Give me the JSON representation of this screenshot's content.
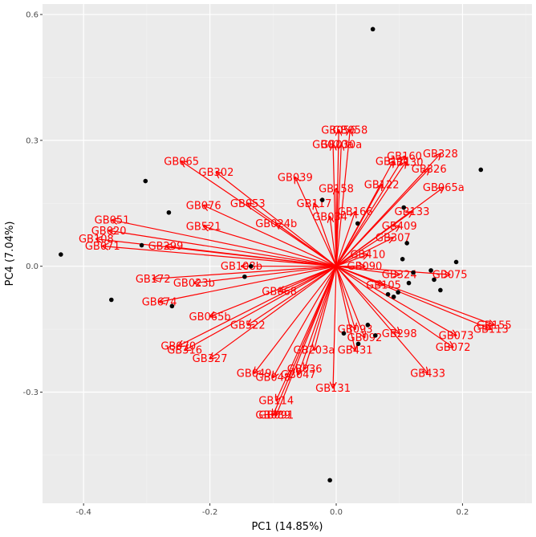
{
  "chart_data": {
    "type": "scatter",
    "title": "",
    "xlabel": "PC1 (14.85%)",
    "ylabel": "PC4 (7.04%)",
    "xlim": [
      -0.465,
      0.31
    ],
    "ylim": [
      -0.565,
      0.625
    ],
    "x_ticks": [
      -0.4,
      -0.2,
      0.0,
      0.2
    ],
    "x_tick_labels": [
      "-0.4",
      "-0.2",
      "0.0",
      "0.2"
    ],
    "y_ticks": [
      -0.3,
      0.0,
      0.3,
      0.6
    ],
    "y_tick_labels": [
      "-0.3",
      "0.0",
      "0.3",
      "0.6"
    ],
    "grid": true,
    "background": "#ebebeb",
    "arrow_color": "#ff0000",
    "point_color": "#000000",
    "origin": [
      0.0,
      0.0
    ],
    "points": [
      {
        "x": 0.058,
        "y": 0.565
      },
      {
        "x": 0.229,
        "y": 0.23
      },
      {
        "x": -0.302,
        "y": 0.203
      },
      {
        "x": -0.022,
        "y": 0.158
      },
      {
        "x": 0.107,
        "y": 0.14
      },
      {
        "x": -0.265,
        "y": 0.128
      },
      {
        "x": 0.034,
        "y": 0.102
      },
      {
        "x": 0.112,
        "y": 0.055
      },
      {
        "x": -0.308,
        "y": 0.05
      },
      {
        "x": -0.436,
        "y": 0.028
      },
      {
        "x": 0.105,
        "y": 0.017
      },
      {
        "x": 0.19,
        "y": 0.01
      },
      {
        "x": -0.135,
        "y": 0.0
      },
      {
        "x": 0.15,
        "y": -0.01
      },
      {
        "x": 0.122,
        "y": -0.015
      },
      {
        "x": 0.155,
        "y": -0.032
      },
      {
        "x": -0.145,
        "y": -0.025
      },
      {
        "x": 0.115,
        "y": -0.04
      },
      {
        "x": 0.165,
        "y": -0.057
      },
      {
        "x": 0.098,
        "y": -0.062
      },
      {
        "x": 0.082,
        "y": -0.067
      },
      {
        "x": 0.091,
        "y": -0.073
      },
      {
        "x": -0.356,
        "y": -0.08
      },
      {
        "x": -0.26,
        "y": -0.095
      },
      {
        "x": 0.05,
        "y": -0.14
      },
      {
        "x": 0.012,
        "y": -0.16
      },
      {
        "x": 0.062,
        "y": -0.165
      },
      {
        "x": 0.035,
        "y": -0.185
      },
      {
        "x": -0.01,
        "y": -0.51
      }
    ],
    "arrows": [
      {
        "label": "GB056",
        "x": 0.004,
        "y": 0.325
      },
      {
        "label": "GB058",
        "x": 0.022,
        "y": 0.325
      },
      {
        "label": "GB020a",
        "x": -0.005,
        "y": 0.29
      },
      {
        "label": "GB030a",
        "x": 0.008,
        "y": 0.29
      },
      {
        "label": "GB328",
        "x": 0.165,
        "y": 0.268
      },
      {
        "label": "GB160",
        "x": 0.108,
        "y": 0.262
      },
      {
        "label": "GB111",
        "x": 0.09,
        "y": 0.25
      },
      {
        "label": "GB130",
        "x": 0.11,
        "y": 0.248
      },
      {
        "label": "GB326",
        "x": 0.147,
        "y": 0.232
      },
      {
        "label": "GB065",
        "x": -0.245,
        "y": 0.25
      },
      {
        "label": "GB302",
        "x": -0.19,
        "y": 0.224
      },
      {
        "label": "GB039",
        "x": -0.065,
        "y": 0.212
      },
      {
        "label": "GB122",
        "x": 0.072,
        "y": 0.195
      },
      {
        "label": "GB158",
        "x": 0.0,
        "y": 0.185
      },
      {
        "label": "GB065a",
        "x": 0.17,
        "y": 0.188
      },
      {
        "label": "GB117",
        "x": -0.035,
        "y": 0.15
      },
      {
        "label": "GB076",
        "x": -0.21,
        "y": 0.145
      },
      {
        "label": "GB053",
        "x": -0.14,
        "y": 0.15
      },
      {
        "label": "GB166",
        "x": 0.03,
        "y": 0.13
      },
      {
        "label": "GB133",
        "x": 0.12,
        "y": 0.13
      },
      {
        "label": "GB034",
        "x": -0.01,
        "y": 0.118
      },
      {
        "label": "GB051",
        "x": -0.355,
        "y": 0.11
      },
      {
        "label": "GB521",
        "x": -0.21,
        "y": 0.095
      },
      {
        "label": "GB024b",
        "x": -0.095,
        "y": 0.102
      },
      {
        "label": "GB409",
        "x": 0.1,
        "y": 0.096
      },
      {
        "label": "GB020",
        "x": -0.36,
        "y": 0.085
      },
      {
        "label": "GB307",
        "x": 0.09,
        "y": 0.068
      },
      {
        "label": "GB108",
        "x": -0.38,
        "y": 0.065
      },
      {
        "label": "GB071",
        "x": -0.37,
        "y": 0.048
      },
      {
        "label": "GB299",
        "x": -0.27,
        "y": 0.048
      },
      {
        "label": "GB410",
        "x": 0.05,
        "y": 0.028
      },
      {
        "label": "GB090",
        "x": 0.045,
        "y": 0.0
      },
      {
        "label": "GB324",
        "x": 0.1,
        "y": -0.02
      },
      {
        "label": "GB075",
        "x": 0.18,
        "y": -0.02
      },
      {
        "label": "GB108b",
        "x": -0.15,
        "y": 0.0
      },
      {
        "label": "GB172",
        "x": -0.29,
        "y": -0.03
      },
      {
        "label": "GB023b",
        "x": -0.225,
        "y": -0.04
      },
      {
        "label": "GB105",
        "x": 0.075,
        "y": -0.045
      },
      {
        "label": "GB674",
        "x": -0.28,
        "y": -0.085
      },
      {
        "label": "GB068",
        "x": -0.09,
        "y": -0.06
      },
      {
        "label": "GB065b",
        "x": -0.2,
        "y": -0.12
      },
      {
        "label": "GB522",
        "x": -0.14,
        "y": -0.14
      },
      {
        "label": "GB155",
        "x": 0.25,
        "y": -0.14
      },
      {
        "label": "GB113",
        "x": 0.245,
        "y": -0.15
      },
      {
        "label": "GB093",
        "x": 0.03,
        "y": -0.15
      },
      {
        "label": "GB298",
        "x": 0.1,
        "y": -0.16
      },
      {
        "label": "GB073",
        "x": 0.19,
        "y": -0.165
      },
      {
        "label": "GB092",
        "x": 0.045,
        "y": -0.17
      },
      {
        "label": "GB070",
        "x": -0.25,
        "y": -0.19
      },
      {
        "label": "GB072",
        "x": 0.185,
        "y": -0.193
      },
      {
        "label": "GB203a",
        "x": -0.035,
        "y": -0.2
      },
      {
        "label": "GB316",
        "x": -0.24,
        "y": -0.2
      },
      {
        "label": "GB431",
        "x": 0.03,
        "y": -0.2
      },
      {
        "label": "GB327",
        "x": -0.2,
        "y": -0.22
      },
      {
        "label": "GB036",
        "x": -0.05,
        "y": -0.245
      },
      {
        "label": "GB049",
        "x": -0.13,
        "y": -0.255
      },
      {
        "label": "GB047",
        "x": -0.06,
        "y": -0.258
      },
      {
        "label": "GB048",
        "x": -0.1,
        "y": -0.265
      },
      {
        "label": "GB433",
        "x": 0.145,
        "y": -0.255
      },
      {
        "label": "GB131",
        "x": -0.005,
        "y": -0.29
      },
      {
        "label": "GB114",
        "x": -0.095,
        "y": -0.32
      },
      {
        "label": "GB089",
        "x": -0.1,
        "y": -0.355
      },
      {
        "label": "GB091",
        "x": -0.095,
        "y": -0.355
      }
    ]
  }
}
